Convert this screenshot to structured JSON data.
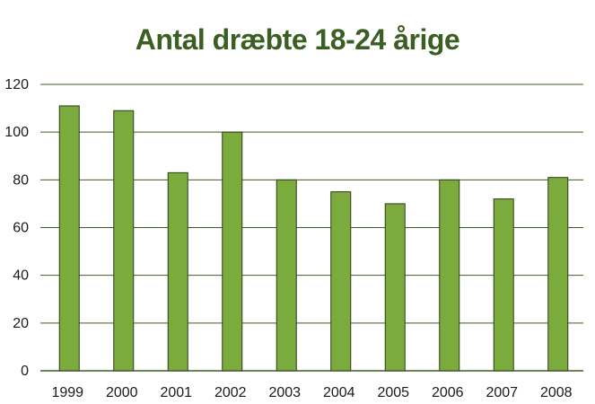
{
  "colors": {
    "title": "#3b5e23",
    "bar_fill": "#7aab3c",
    "bar_stroke": "#2f3b1a",
    "grid": "#3b5e23",
    "axis": "#3b5e23"
  },
  "chart_data": {
    "type": "bar",
    "title": "Antal dræbte 18-24 årige",
    "xlabel": "",
    "ylabel": "",
    "categories": [
      "1999",
      "2000",
      "2001",
      "2002",
      "2003",
      "2004",
      "2005",
      "2006",
      "2007",
      "2008"
    ],
    "values": [
      111,
      109,
      83,
      100,
      80,
      75,
      70,
      80,
      72,
      81
    ],
    "ylim": [
      0,
      120
    ],
    "yticks": [
      0,
      20,
      40,
      60,
      80,
      100,
      120
    ],
    "grid": true,
    "legend": "none"
  }
}
